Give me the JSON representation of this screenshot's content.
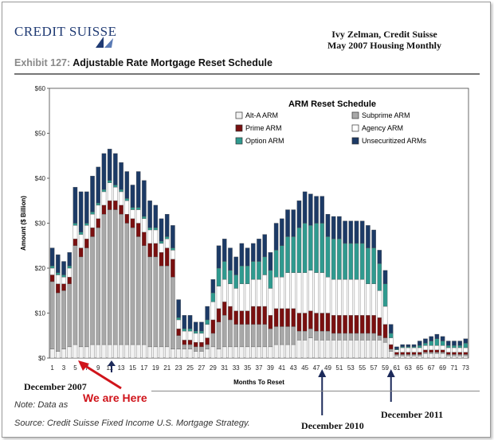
{
  "brand": {
    "name": "CREDIT SUISSE"
  },
  "attribution": {
    "line1": "Ivy Zelman, Credit Suisse",
    "line2": "May 2007 Housing Monthly"
  },
  "exhibit": {
    "number": "Exhibit 127:",
    "title": "Adjustable Rate Mortgage Reset Schedule"
  },
  "footer": {
    "note": "Note: Data as",
    "source": "Source: Credit Suisse Fixed Income U.S. Mortgage Strategy."
  },
  "annotations": {
    "december_2007": "December 2007",
    "we_are_here": "We are Here",
    "december_2010": "December 2010",
    "december_2011": "December 2011"
  },
  "colors": {
    "alt_a": "#f2f2f2",
    "subprime": "#a8a8a8",
    "prime": "#7a1010",
    "agency": "#ffffff",
    "option": "#2f9a8f",
    "unsecuritized": "#1c3a66",
    "arrow_red": "#d0141b",
    "arrow_navy": "#1c2a5a"
  },
  "chart_data": {
    "type": "bar",
    "stacked": true,
    "title": "ARM Reset Schedule",
    "xlabel": "Months To Reset",
    "ylabel": "Amount ($ Billion)",
    "ylim": [
      0,
      60
    ],
    "yticks": [
      "$0",
      "$10",
      "$20",
      "$30",
      "$40",
      "$50",
      "$60"
    ],
    "ytick_values": [
      0,
      10,
      20,
      30,
      40,
      50,
      60
    ],
    "x": [
      1,
      2,
      3,
      4,
      5,
      6,
      7,
      8,
      9,
      10,
      11,
      12,
      13,
      14,
      15,
      16,
      17,
      18,
      19,
      20,
      21,
      22,
      23,
      24,
      25,
      26,
      27,
      28,
      29,
      30,
      31,
      32,
      33,
      34,
      35,
      36,
      37,
      38,
      39,
      40,
      41,
      42,
      43,
      44,
      45,
      46,
      47,
      48,
      49,
      50,
      51,
      52,
      53,
      54,
      55,
      56,
      57,
      58,
      59,
      60,
      61,
      62,
      63,
      64,
      65,
      66,
      67,
      68,
      69,
      70,
      71,
      72,
      73
    ],
    "xtick_labels": [
      "1",
      "3",
      "5",
      "7",
      "9",
      "11",
      "13",
      "15",
      "17",
      "19",
      "21",
      "23",
      "25",
      "27",
      "29",
      "31",
      "33",
      "35",
      "37",
      "39",
      "41",
      "43",
      "45",
      "47",
      "49",
      "51",
      "53",
      "55",
      "57",
      "59",
      "61",
      "63",
      "65",
      "67",
      "69",
      "71",
      "73"
    ],
    "legend_position": "top-right",
    "series": [
      {
        "name": "Alt-A ARM",
        "color_key": "alt_a",
        "values": [
          2,
          1.5,
          2,
          2.5,
          3,
          2.5,
          2.5,
          3,
          3,
          3,
          3,
          3,
          3,
          3,
          3,
          3,
          3,
          2.5,
          2.5,
          2.5,
          2.5,
          2,
          2,
          2,
          2,
          1.5,
          1.5,
          2,
          2.5,
          2,
          2.5,
          2.5,
          2.5,
          2.5,
          2.5,
          2.5,
          2.5,
          2.5,
          2.5,
          3,
          3,
          3,
          3,
          4,
          4,
          4.5,
          4,
          4,
          4,
          4,
          4,
          4,
          4,
          4,
          4,
          4,
          4,
          4,
          3.5,
          1.5,
          0.5,
          0.5,
          0.5,
          0.5,
          0.5,
          1,
          1,
          1,
          1,
          0.5,
          0.5,
          0.5,
          0.5
        ]
      },
      {
        "name": "Subprime ARM",
        "color_key": "subprime",
        "values": [
          15,
          13,
          13,
          14,
          22,
          20,
          22,
          24,
          26,
          29,
          30,
          30,
          29,
          27,
          26,
          24,
          22,
          20,
          20,
          18,
          18,
          16,
          3,
          1,
          1,
          1,
          1,
          1,
          3,
          6,
          7,
          6,
          5,
          5,
          5,
          5,
          5,
          5,
          4,
          4,
          4,
          4,
          4,
          2,
          2,
          2,
          2,
          2,
          2,
          1.5,
          1.5,
          1.5,
          1.5,
          1.5,
          1.5,
          1.5,
          1.5,
          1,
          1,
          0.5,
          0.3,
          0.3,
          0.3,
          0.3,
          0.3,
          0.3,
          0.3,
          0.3,
          0.3,
          0.3,
          0.3,
          0.3,
          0.3
        ]
      },
      {
        "name": "Prime ARM",
        "color_key": "prime",
        "values": [
          1.5,
          2,
          1.5,
          1.5,
          1.5,
          2,
          2,
          2,
          2,
          2,
          2,
          2,
          2,
          2,
          2,
          3,
          3,
          3,
          3,
          3,
          4,
          4,
          1.5,
          1,
          1,
          1,
          1,
          1.5,
          3,
          3,
          3,
          3,
          3,
          3,
          3,
          4,
          4,
          4,
          3,
          4,
          4,
          4,
          4,
          4,
          4,
          4,
          4,
          4,
          4,
          4,
          4,
          4,
          4,
          4,
          4,
          4,
          4,
          4,
          3,
          1,
          0.5,
          0.5,
          0.5,
          0.5,
          0.5,
          0.5,
          0.5,
          0.5,
          0.5,
          0.5,
          0.5,
          0.5,
          0.5
        ]
      },
      {
        "name": "Agency ARM",
        "color_key": "agency",
        "values": [
          1.5,
          2,
          1.5,
          2,
          3,
          3,
          3,
          3,
          3,
          3,
          4,
          3,
          3,
          3,
          2,
          3,
          3,
          3,
          3,
          2,
          2,
          2,
          2,
          2,
          2,
          2,
          2,
          3,
          4,
          5,
          5,
          5,
          5,
          6,
          6,
          6,
          6,
          7,
          6,
          7,
          7,
          8,
          8,
          9,
          9,
          9,
          9,
          9,
          8,
          8,
          8,
          8,
          8,
          8,
          8,
          7,
          7,
          6,
          4,
          1.5,
          0.5,
          1,
          1,
          1,
          1,
          1,
          1,
          1,
          1,
          1,
          1,
          1,
          1
        ]
      },
      {
        "name": "Option ARM",
        "color_key": "option",
        "values": [
          0.5,
          0.5,
          0.5,
          0.5,
          0.5,
          0.5,
          0.5,
          0.5,
          0.5,
          0.5,
          0.5,
          0.5,
          0.5,
          0.5,
          0.5,
          0.5,
          0.5,
          0.5,
          0.5,
          0.5,
          0.5,
          0.5,
          0.5,
          0.5,
          0.5,
          0.5,
          0.5,
          1,
          2,
          4,
          4,
          3,
          3,
          4,
          4,
          4,
          4,
          4,
          4,
          6,
          7,
          8,
          8,
          10,
          11,
          10,
          11,
          11,
          9,
          9,
          9,
          8,
          8,
          8,
          8,
          8,
          8,
          6,
          5,
          1,
          0.2,
          0.2,
          0.2,
          0.2,
          0.5,
          0.5,
          1,
          1.5,
          1,
          0.5,
          0.5,
          0.5,
          1
        ]
      },
      {
        "name": "Unsecuritized ARMs",
        "color_key": "unsecuritized",
        "values": [
          4,
          4,
          3,
          3,
          8,
          9,
          7,
          8,
          8,
          8,
          7,
          7,
          6,
          6,
          5,
          8,
          8,
          6,
          5,
          5,
          5,
          5,
          4,
          3,
          3,
          2,
          2,
          3,
          3,
          5,
          5,
          5,
          4,
          5,
          4,
          4,
          5,
          5,
          4,
          6,
          6,
          6,
          6,
          6,
          7,
          7,
          6,
          6,
          5,
          5,
          5,
          5,
          5,
          5,
          5,
          5,
          4,
          3,
          3,
          2,
          0.5,
          0.5,
          0.5,
          0.5,
          1,
          1,
          1,
          1,
          1,
          1,
          1,
          1,
          1
        ]
      }
    ]
  }
}
